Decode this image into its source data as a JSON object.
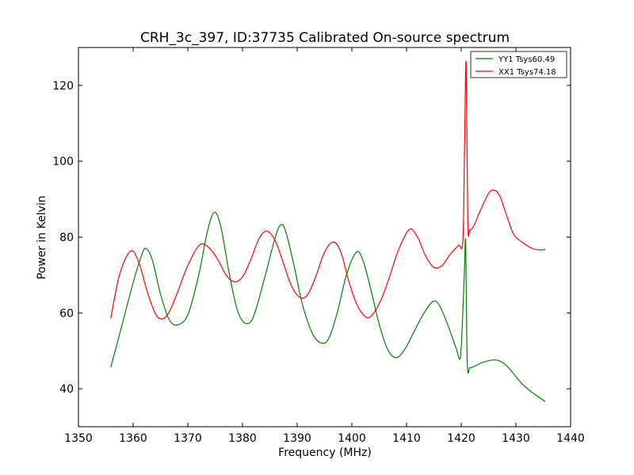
{
  "chart_data": {
    "type": "line",
    "title": "CRH_3c_397, ID:37735 Calibrated On-source spectrum",
    "xlabel": "Frequency (MHz)",
    "ylabel": "Power in Kelvin",
    "xlim": [
      1350,
      1440
    ],
    "ylim": [
      30,
      130
    ],
    "xticks": [
      1350,
      1360,
      1370,
      1380,
      1390,
      1400,
      1410,
      1420,
      1430,
      1440
    ],
    "yticks": [
      40,
      60,
      80,
      100,
      120
    ],
    "grid": false,
    "legend_position": "top-right",
    "series": [
      {
        "name": "YY1 Tsys60.49",
        "color": "#008000",
        "x": [
          1355.9,
          1358,
          1360,
          1361.5,
          1362.3,
          1363.5,
          1365,
          1366.5,
          1368,
          1370,
          1372,
          1373.5,
          1374.8,
          1376,
          1377.5,
          1379,
          1380.5,
          1382,
          1384,
          1386,
          1387.1,
          1388,
          1389.5,
          1391,
          1393,
          1394.8,
          1396,
          1397.5,
          1399,
          1400.8,
          1402,
          1403.5,
          1405,
          1406.5,
          1408,
          1409.5,
          1411,
          1413,
          1414.8,
          1416,
          1417.5,
          1419,
          1419.8,
          1420.2,
          1420.6,
          1420.8,
          1421.1,
          1421.6,
          1422.5,
          1424,
          1426,
          1427.5,
          1429,
          1431,
          1433,
          1435.4
        ],
        "y": [
          45.6,
          57,
          68,
          75,
          77,
          74,
          65,
          58.5,
          56.8,
          59.5,
          70,
          81,
          86.5,
          83,
          71,
          61,
          57.3,
          59,
          69,
          80,
          83.3,
          81,
          72,
          62,
          54,
          52,
          54,
          61,
          70,
          76,
          74,
          66,
          57,
          50.5,
          48.2,
          50,
          54,
          59.5,
          63,
          62,
          57,
          51,
          48,
          57,
          72,
          79.5,
          47,
          45.6,
          46,
          47,
          47.6,
          47,
          45,
          41.5,
          39,
          36.6
        ]
      },
      {
        "name": "XX1 Tsys74.18",
        "color": "#ff0000",
        "x": [
          1355.9,
          1357.5,
          1359.5,
          1361,
          1362.5,
          1364,
          1365.2,
          1366.5,
          1368,
          1370,
          1372.2,
          1374,
          1375.5,
          1377,
          1378.5,
          1380,
          1381.5,
          1383,
          1384.4,
          1386,
          1387.5,
          1389,
          1390.6,
          1392,
          1393.5,
          1395,
          1396.6,
          1398,
          1399.5,
          1401,
          1402.7,
          1404,
          1405.5,
          1407,
          1408.5,
          1410.5,
          1412,
          1413.5,
          1415,
          1416.5,
          1418,
          1419.5,
          1420.3,
          1420.6,
          1420.9,
          1421.2,
          1421.6,
          1422.3,
          1423.5,
          1425,
          1426,
          1427,
          1428,
          1429.5,
          1431,
          1433,
          1434.5,
          1435.4
        ],
        "y": [
          58.5,
          70,
          76.3,
          73.5,
          66,
          60,
          58.4,
          60,
          65,
          72.5,
          78,
          77,
          74,
          70,
          68.2,
          69.5,
          74,
          79.5,
          81.6,
          79,
          73,
          67,
          64,
          65,
          70,
          76,
          78.7,
          76,
          68,
          62,
          58.8,
          60,
          64,
          70,
          76.5,
          82,
          80,
          75,
          72,
          72.5,
          75.5,
          77.8,
          79,
          103,
          126,
          84,
          82,
          83,
          87,
          91.5,
          92.4,
          91,
          87,
          81,
          78.8,
          77,
          76.6,
          76.8
        ]
      }
    ]
  }
}
